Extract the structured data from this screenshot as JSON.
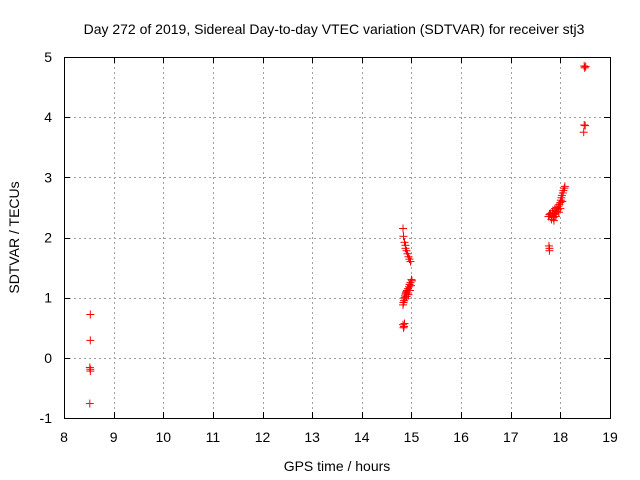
{
  "chart_data": {
    "type": "scatter",
    "title": "Day 272 of 2019, Sidereal Day-to-day VTEC variation (SDTVAR) for receiver stj3",
    "xlabel": "GPS time / hours",
    "ylabel": "SDTVAR / TECUs",
    "xlim": [
      8,
      19
    ],
    "ylim": [
      -1,
      5
    ],
    "xticks": [
      "8",
      "9",
      "10",
      "11",
      "12",
      "13",
      "14",
      "15",
      "16",
      "17",
      "18",
      "19"
    ],
    "yticks": [
      "-1",
      "0",
      "1",
      "2",
      "3",
      "4",
      "5"
    ],
    "grid": true,
    "marker": "+",
    "color": "#ff0000",
    "series": [
      {
        "name": "stj3",
        "points": [
          [
            8.53,
            0.72
          ],
          [
            8.53,
            0.29
          ],
          [
            8.52,
            -0.16
          ],
          [
            8.53,
            -0.19
          ],
          [
            8.53,
            -0.22
          ],
          [
            8.52,
            -0.76
          ],
          [
            14.83,
            2.15
          ],
          [
            14.84,
            2.02
          ],
          [
            14.86,
            1.92
          ],
          [
            14.88,
            1.87
          ],
          [
            14.88,
            1.82
          ],
          [
            14.9,
            1.78
          ],
          [
            14.92,
            1.73
          ],
          [
            14.94,
            1.68
          ],
          [
            14.96,
            1.64
          ],
          [
            14.98,
            1.6
          ],
          [
            14.83,
            0.55
          ],
          [
            14.85,
            0.52
          ],
          [
            14.84,
            0.5
          ],
          [
            14.86,
            0.57
          ],
          [
            14.83,
            0.88
          ],
          [
            14.84,
            0.92
          ],
          [
            14.85,
            0.95
          ],
          [
            14.86,
            1.0
          ],
          [
            14.87,
            1.03
          ],
          [
            14.88,
            1.06
          ],
          [
            14.89,
            1.08
          ],
          [
            14.9,
            1.1
          ],
          [
            14.91,
            1.12
          ],
          [
            14.93,
            1.15
          ],
          [
            14.95,
            1.18
          ],
          [
            14.96,
            1.22
          ],
          [
            14.98,
            1.25
          ],
          [
            15.0,
            1.3
          ],
          [
            15.01,
            1.28
          ],
          [
            14.87,
            0.98
          ],
          [
            14.9,
            1.02
          ],
          [
            14.94,
            1.05
          ],
          [
            14.97,
            1.12
          ],
          [
            14.99,
            1.2
          ],
          [
            17.77,
            1.86
          ],
          [
            17.78,
            1.82
          ],
          [
            17.78,
            1.78
          ],
          [
            17.76,
            2.35
          ],
          [
            17.78,
            2.38
          ],
          [
            17.8,
            2.4
          ],
          [
            17.82,
            2.3
          ],
          [
            17.83,
            2.36
          ],
          [
            17.84,
            2.42
          ],
          [
            17.85,
            2.45
          ],
          [
            17.86,
            2.33
          ],
          [
            17.88,
            2.38
          ],
          [
            17.89,
            2.48
          ],
          [
            17.9,
            2.4
          ],
          [
            17.92,
            2.43
          ],
          [
            17.93,
            2.5
          ],
          [
            17.95,
            2.46
          ],
          [
            17.96,
            2.52
          ],
          [
            17.98,
            2.55
          ],
          [
            18.0,
            2.58
          ],
          [
            18.01,
            2.62
          ],
          [
            18.02,
            2.66
          ],
          [
            18.03,
            2.7
          ],
          [
            18.05,
            2.74
          ],
          [
            18.06,
            2.78
          ],
          [
            18.08,
            2.82
          ],
          [
            18.09,
            2.85
          ],
          [
            17.87,
            2.28
          ],
          [
            17.91,
            2.35
          ],
          [
            17.97,
            2.42
          ],
          [
            18.0,
            2.48
          ],
          [
            18.04,
            2.6
          ],
          [
            18.48,
            4.85
          ],
          [
            18.49,
            4.82
          ],
          [
            18.51,
            4.84
          ],
          [
            18.48,
            3.87
          ],
          [
            18.5,
            3.86
          ],
          [
            18.47,
            3.75
          ]
        ]
      }
    ]
  }
}
